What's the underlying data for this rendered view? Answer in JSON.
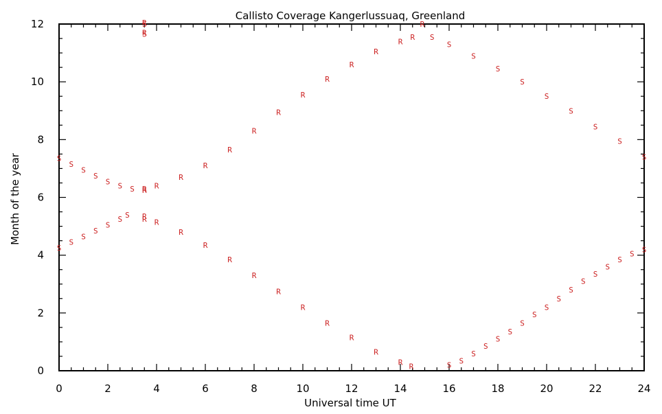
{
  "chart_data": {
    "type": "scatter",
    "title": "Callisto Coverage Kangerlussuaq, Greenland",
    "xlabel": "Universal time UT",
    "ylabel": "Month of the year",
    "xlim": [
      0,
      24
    ],
    "ylim": [
      0,
      12
    ],
    "x_ticks": [
      0,
      2,
      4,
      6,
      8,
      10,
      12,
      14,
      16,
      18,
      20,
      22,
      24
    ],
    "y_ticks": [
      0,
      2,
      4,
      6,
      8,
      10,
      12
    ],
    "grid": false,
    "marker_color": "#cc2222",
    "series": [
      {
        "marker": "S",
        "points": [
          [
            0.0,
            7.35
          ],
          [
            0.5,
            7.15
          ],
          [
            1.0,
            6.95
          ],
          [
            1.5,
            6.75
          ],
          [
            2.0,
            6.55
          ],
          [
            2.5,
            6.4
          ],
          [
            3.0,
            6.3
          ],
          [
            0.0,
            4.25
          ],
          [
            0.5,
            4.45
          ],
          [
            1.0,
            4.65
          ],
          [
            1.5,
            4.85
          ],
          [
            2.0,
            5.05
          ],
          [
            2.5,
            5.25
          ],
          [
            2.8,
            5.4
          ],
          [
            15.3,
            11.55
          ],
          [
            16.0,
            11.3
          ],
          [
            17.0,
            10.9
          ],
          [
            18.0,
            10.45
          ],
          [
            19.0,
            10.0
          ],
          [
            20.0,
            9.5
          ],
          [
            21.0,
            9.0
          ],
          [
            22.0,
            8.45
          ],
          [
            23.0,
            7.95
          ],
          [
            24.0,
            7.4
          ],
          [
            16.0,
            0.2
          ],
          [
            16.5,
            0.35
          ],
          [
            17.0,
            0.6
          ],
          [
            17.5,
            0.85
          ],
          [
            18.0,
            1.1
          ],
          [
            18.5,
            1.35
          ],
          [
            19.0,
            1.65
          ],
          [
            19.5,
            1.95
          ],
          [
            20.0,
            2.2
          ],
          [
            20.5,
            2.5
          ],
          [
            21.0,
            2.8
          ],
          [
            21.5,
            3.1
          ],
          [
            22.0,
            3.35
          ],
          [
            22.5,
            3.6
          ],
          [
            23.0,
            3.85
          ],
          [
            23.5,
            4.05
          ],
          [
            24.0,
            4.2
          ],
          [
            3.5,
            11.65
          ],
          [
            3.5,
            12.0
          ]
        ]
      },
      {
        "marker": "R",
        "points": [
          [
            3.5,
            6.3
          ],
          [
            4.0,
            6.4
          ],
          [
            5.0,
            6.7
          ],
          [
            6.0,
            7.1
          ],
          [
            7.0,
            7.65
          ],
          [
            8.0,
            8.3
          ],
          [
            9.0,
            8.95
          ],
          [
            10.0,
            9.55
          ],
          [
            11.0,
            10.1
          ],
          [
            12.0,
            10.6
          ],
          [
            13.0,
            11.05
          ],
          [
            14.0,
            11.4
          ],
          [
            14.5,
            11.55
          ],
          [
            3.5,
            5.25
          ],
          [
            4.0,
            5.15
          ],
          [
            5.0,
            4.8
          ],
          [
            6.0,
            4.35
          ],
          [
            7.0,
            3.85
          ],
          [
            8.0,
            3.3
          ],
          [
            9.0,
            2.75
          ],
          [
            10.0,
            2.2
          ],
          [
            11.0,
            1.65
          ],
          [
            12.0,
            1.15
          ],
          [
            13.0,
            0.65
          ],
          [
            14.0,
            0.3
          ],
          [
            14.45,
            0.15
          ],
          [
            14.9,
            12.0
          ],
          [
            3.5,
            5.35
          ],
          [
            3.5,
            6.25
          ],
          [
            3.5,
            11.7
          ],
          [
            3.5,
            12.05
          ]
        ]
      }
    ]
  }
}
